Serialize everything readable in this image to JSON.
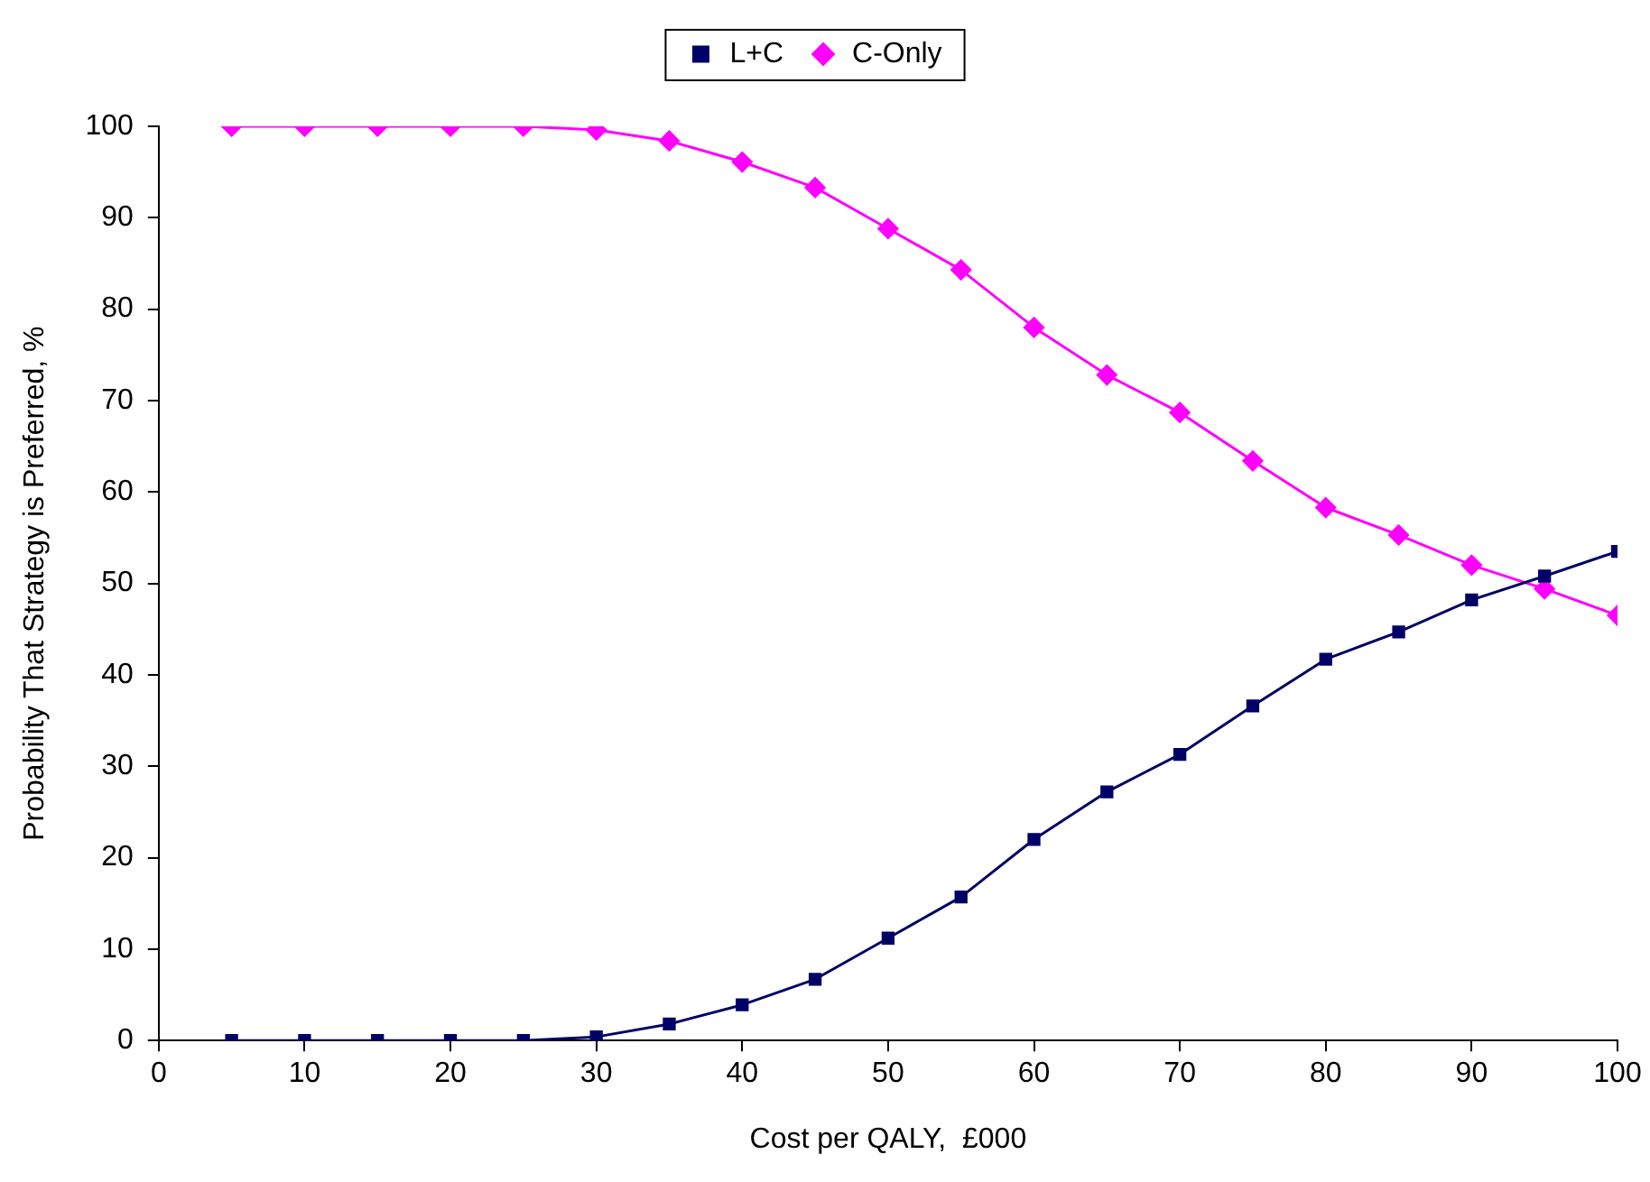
{
  "chart_data": {
    "type": "line",
    "xlabel": "Cost per QALY,  £000",
    "ylabel": "Probability That Strategy is Preferred, %",
    "x": [
      5,
      10,
      15,
      20,
      25,
      30,
      35,
      40,
      45,
      50,
      55,
      60,
      65,
      70,
      75,
      80,
      85,
      90,
      95,
      100
    ],
    "series": [
      {
        "name": "L+C",
        "color": "#000066",
        "marker": "square",
        "values": [
          0,
          0,
          0,
          0,
          0,
          0.4,
          1.8,
          3.9,
          6.7,
          11.2,
          15.7,
          22,
          27.2,
          31.3,
          36.6,
          41.7,
          44.7,
          48.2,
          50.8,
          53.5
        ]
      },
      {
        "name": "C-Only",
        "color": "#ff00ff",
        "marker": "diamond",
        "values": [
          100,
          100,
          100,
          100,
          100,
          99.6,
          98.4,
          96.1,
          93.3,
          88.8,
          84.3,
          78,
          72.8,
          68.7,
          63.4,
          58.3,
          55.3,
          52,
          49.4,
          46.5
        ]
      }
    ],
    "xlim": [
      0,
      100
    ],
    "xticks": [
      0,
      10,
      20,
      30,
      40,
      50,
      60,
      70,
      80,
      90,
      100
    ],
    "ylim": [
      0,
      100
    ],
    "yticks": [
      0,
      10,
      20,
      30,
      40,
      50,
      60,
      70,
      80,
      90,
      100
    ],
    "grid": false,
    "legend": "top"
  }
}
